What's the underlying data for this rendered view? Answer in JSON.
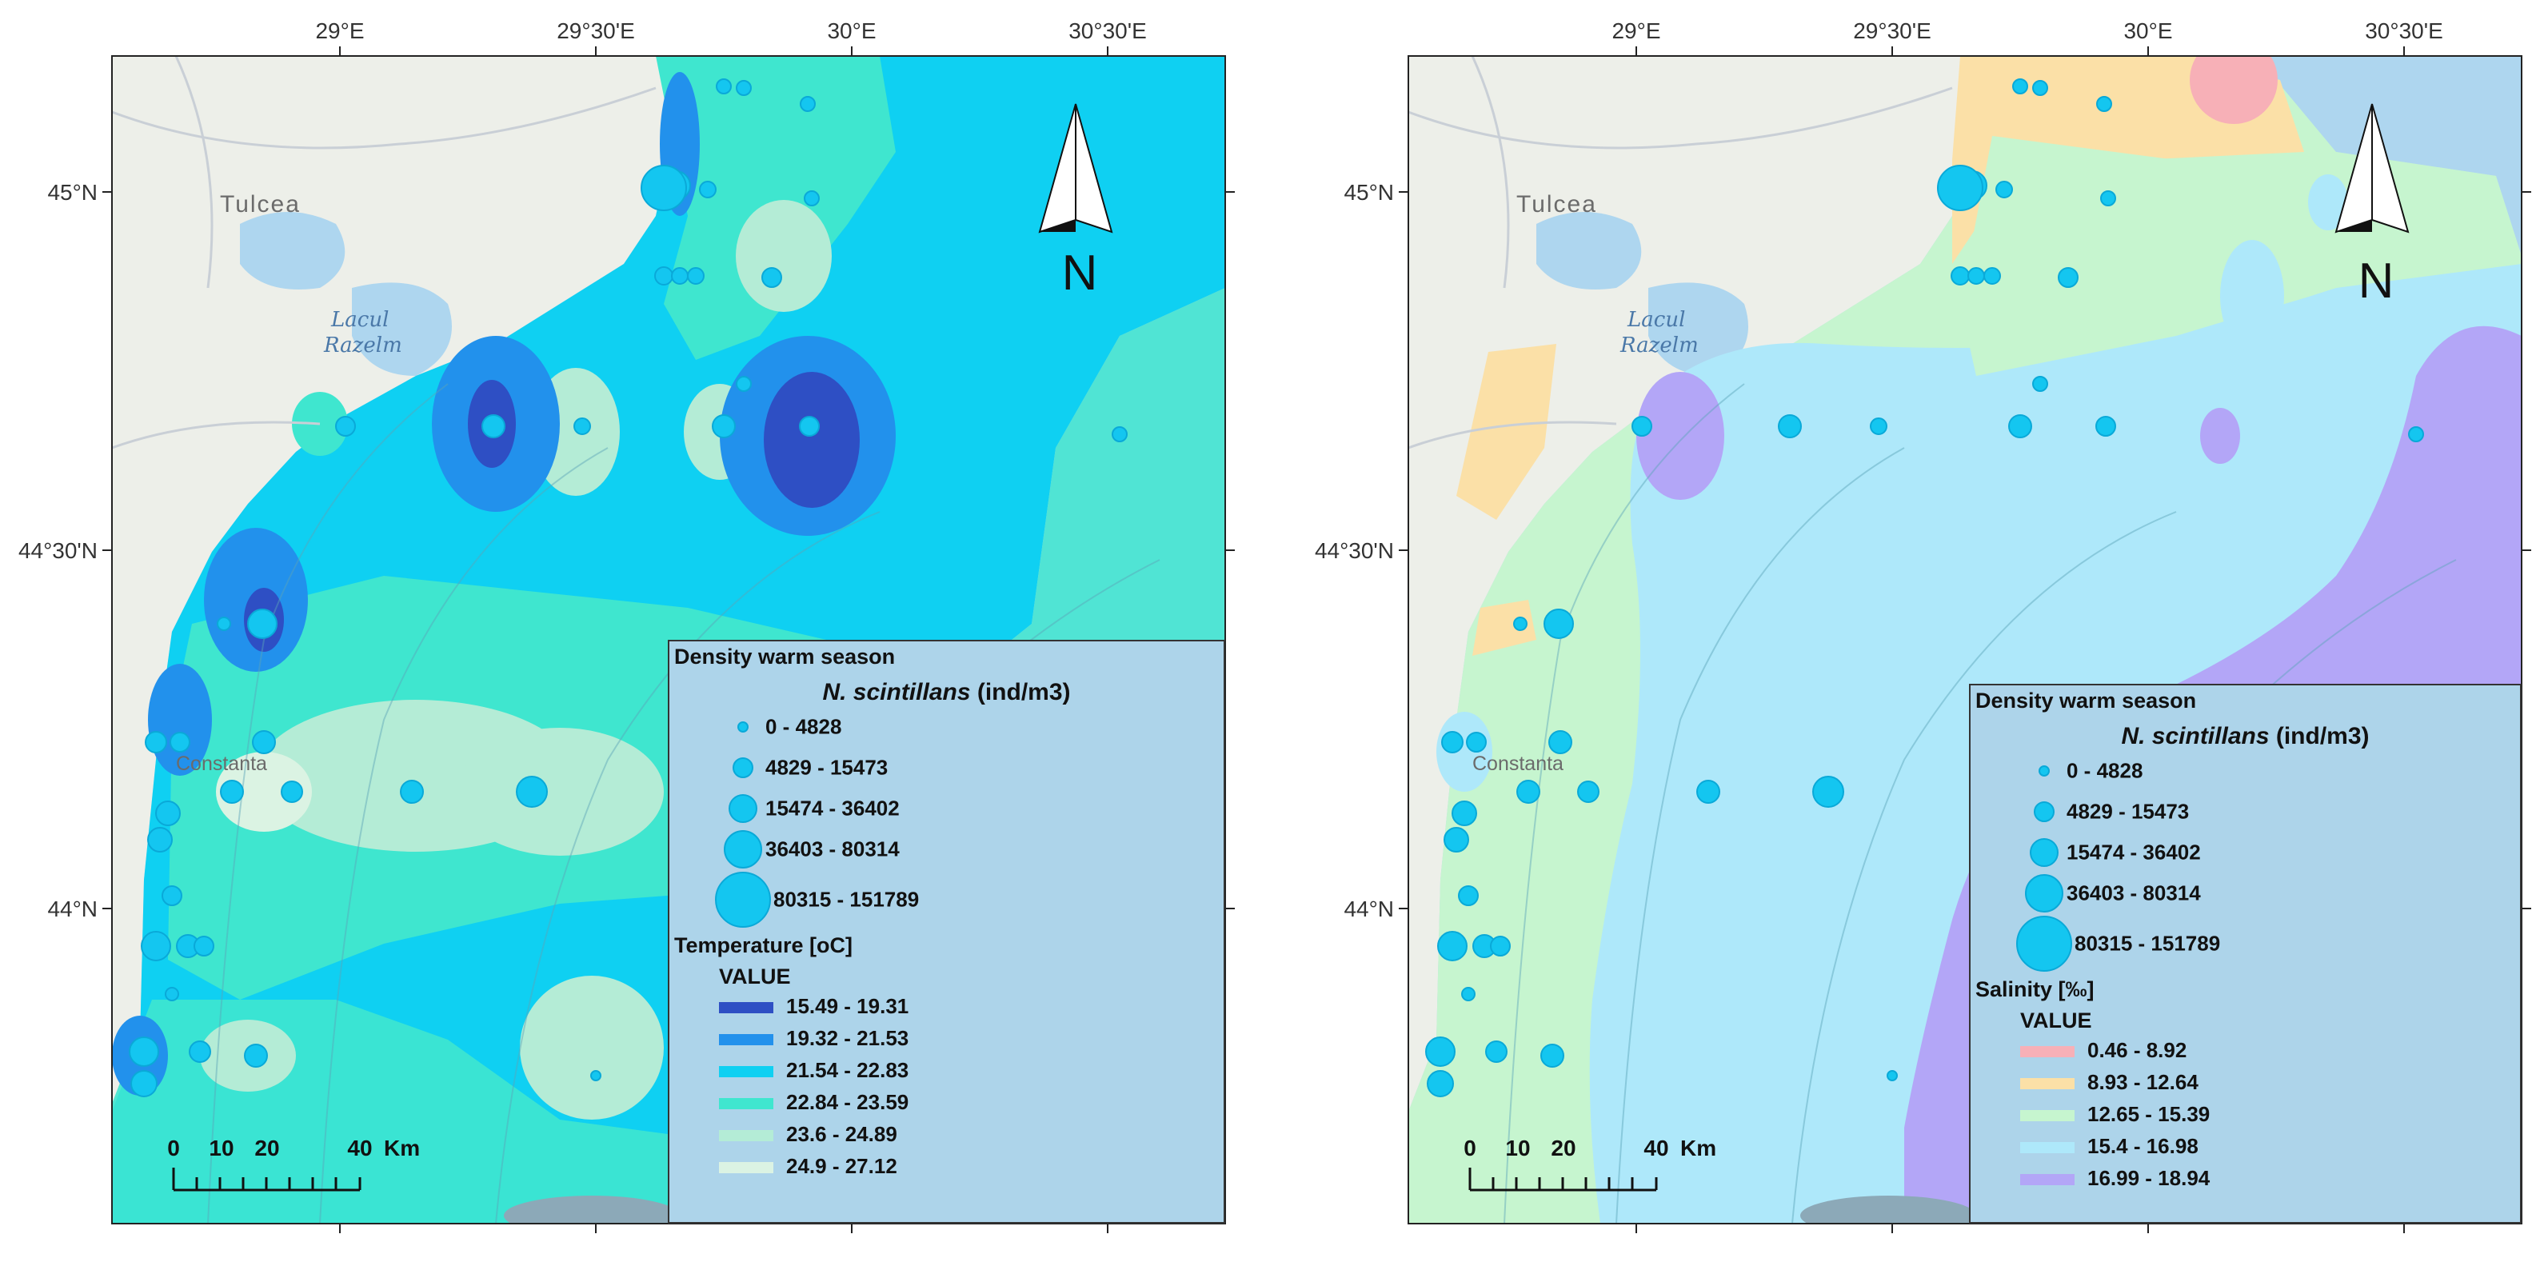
{
  "axes": {
    "lon_labels": [
      "29°E",
      "29°30'E",
      "30°E",
      "30°30'E"
    ],
    "lat_labels": [
      "45°N",
      "44°30'N",
      "44°N"
    ]
  },
  "places": {
    "town1": "Tulcea",
    "lake": [
      "Lacul",
      "Razelm"
    ],
    "town2": "Constanta"
  },
  "north_arrow": "N",
  "scale_bar": {
    "ticks": [
      "0",
      "10",
      "20",
      "40"
    ],
    "unit": "Km"
  },
  "icons": [
    "north-arrow-icon",
    "scale-bar-icon"
  ],
  "density_legend": {
    "title": "Density warm season",
    "species": "N. scintillans",
    "unit": "(ind/m3)",
    "classes": [
      "0 - 4828",
      "4829 - 15473",
      "15474 - 36402",
      "36403 - 80314",
      "80315 - 151789"
    ],
    "dot_color": "#14c6f0"
  },
  "temperature_legend": {
    "title": "Temperature [oC]",
    "value_label": "VALUE",
    "classes": [
      {
        "label": "15.49 - 19.31",
        "color": "#2e4fc4"
      },
      {
        "label": "19.32 - 21.53",
        "color": "#2291ec"
      },
      {
        "label": "21.54 - 22.83",
        "color": "#0fd0f2"
      },
      {
        "label": "22.84 - 23.59",
        "color": "#3fe6cf"
      },
      {
        "label": "23.6 - 24.89",
        "color": "#b4ecd6"
      },
      {
        "label": "24.9 - 27.12",
        "color": "#dbf3e3"
      }
    ]
  },
  "salinity_legend": {
    "title": "Salinity [‰]",
    "value_label": "VALUE",
    "classes": [
      {
        "label": "0.46 - 8.92",
        "color": "#f7b0b7"
      },
      {
        "label": "8.93 - 12.64",
        "color": "#fbe0a7"
      },
      {
        "label": "12.65 - 15.39",
        "color": "#c6f5cf"
      },
      {
        "label": "15.4 - 16.98",
        "color": "#aee8fa"
      },
      {
        "label": "16.99 - 18.94",
        "color": "#b3a6f7"
      }
    ]
  }
}
